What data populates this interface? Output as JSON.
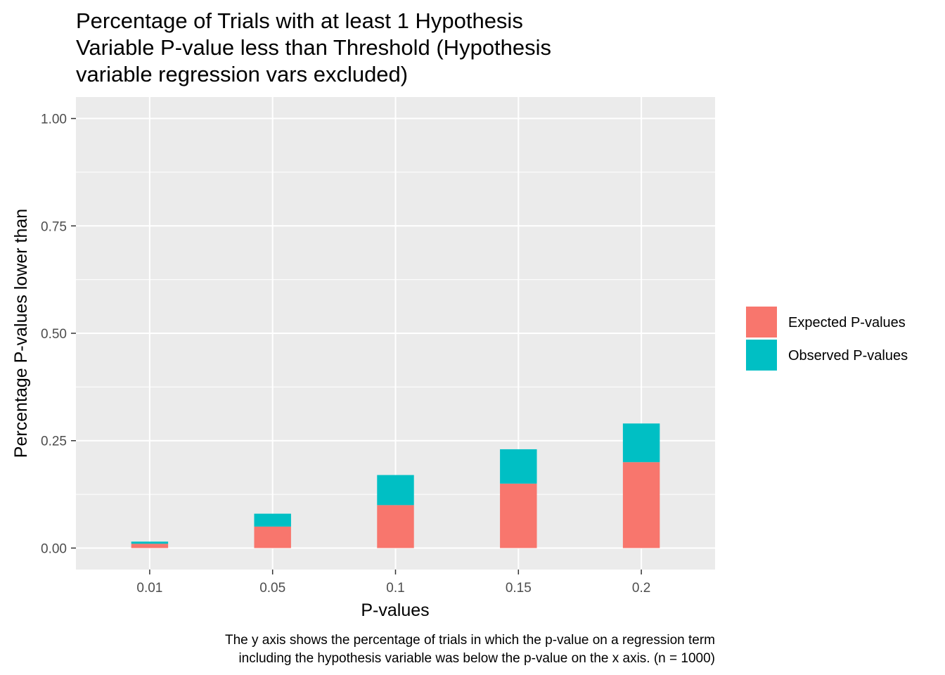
{
  "chart_data": {
    "type": "bar",
    "stacked": true,
    "title": "Percentage of Trials with at least 1 Hypothesis Variable P-value less than Threshold (Hypothesis variable regression vars excluded)",
    "title_lines": [
      "Percentage of Trials with at least 1 Hypothesis",
      "Variable P-value less than Threshold (Hypothesis",
      "variable regression vars excluded)"
    ],
    "xlabel": "P-values",
    "ylabel": "Percentage P-values lower than",
    "categories": [
      "0.01",
      "0.05",
      "0.1",
      "0.15",
      "0.2"
    ],
    "series": [
      {
        "name": "Expected P-values",
        "color": "#F8766D",
        "values": [
          0.01,
          0.05,
          0.1,
          0.15,
          0.2
        ]
      },
      {
        "name": "Observed P-values",
        "color": "#00BFC4",
        "values": [
          0.005,
          0.03,
          0.07,
          0.08,
          0.09
        ]
      }
    ],
    "ylim": [
      -0.05,
      1.05
    ],
    "yticks": [
      0,
      0.25,
      0.5,
      0.75,
      1.0
    ],
    "ytick_labels": [
      "0.00",
      "0.25",
      "0.50",
      "0.75",
      "1.00"
    ],
    "grid": true,
    "legend_position": "right",
    "caption": "The y axis shows the percentage of trials in which the p-value on a regression term including the hypothesis variable was below the p-value on the x axis. (n = 1000)",
    "caption_lines": [
      "The y axis shows the percentage of trials in which the p-value on a regression term",
      "including the hypothesis variable was below the p-value on the x axis. (n = 1000)"
    ],
    "panel_background": "#EBEBEB",
    "grid_color": "#FFFFFF"
  }
}
